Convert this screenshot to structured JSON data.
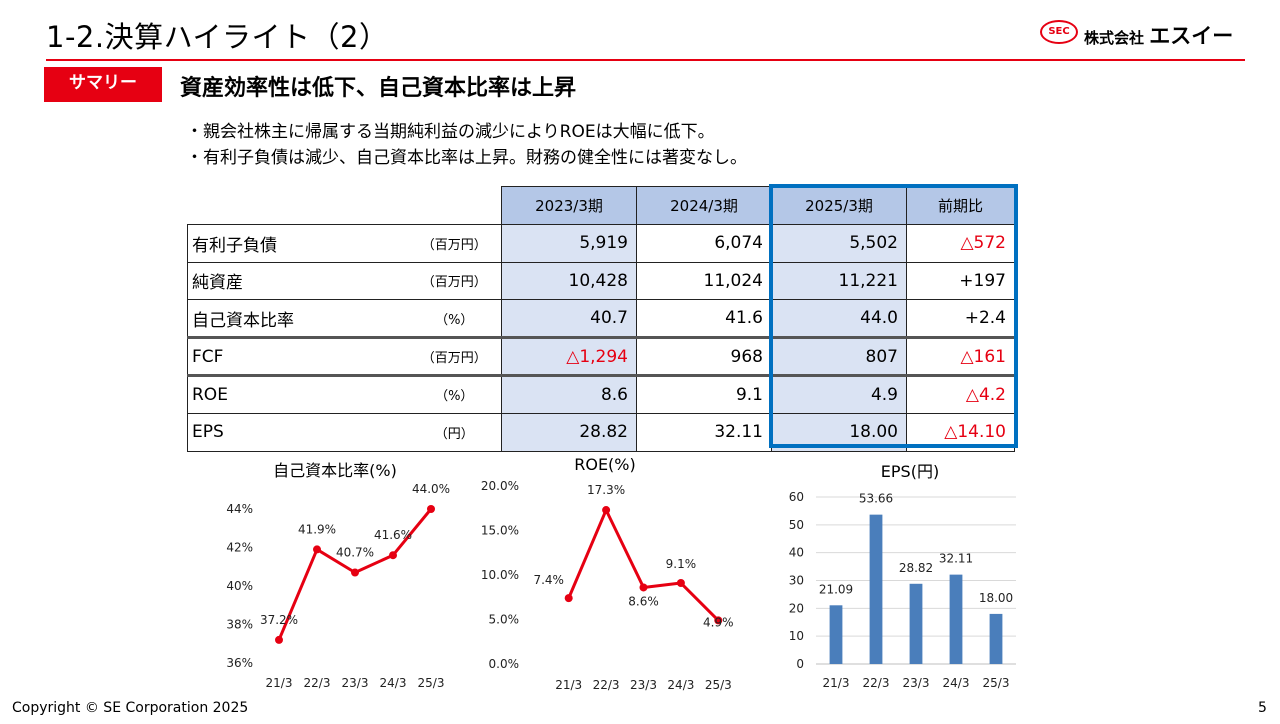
{
  "header": {
    "title": "1-2.決算ハイライト（2）",
    "logo_badge": "SEC",
    "logo_prefix": "株式会社",
    "logo_name": "エスイー"
  },
  "summary": {
    "tag": "サマリー",
    "headline": "資産効率性は低下、自己資本比率は上昇",
    "bullets": [
      "・親会社株主に帰属する当期純利益の減少によりROEは大幅に低下。",
      "・有利子負債は減少、自己資本比率は上昇。財務の健全性には著変なし。"
    ]
  },
  "table": {
    "headers": [
      "2023/3期",
      "2024/3期",
      "2025/3期",
      "前期比"
    ],
    "rows": [
      {
        "label": "有利子負債",
        "unit": "（百万円）",
        "values": [
          "5,919",
          "6,074",
          "5,502",
          "△572"
        ]
      },
      {
        "label": "純資産",
        "unit": "（百万円）",
        "values": [
          "10,428",
          "11,024",
          "11,221",
          "+197"
        ]
      },
      {
        "label": "自己資本比率",
        "unit": "（%）",
        "values": [
          "40.7",
          "41.6",
          "44.0",
          "+2.4"
        ]
      },
      {
        "label": "FCF",
        "unit": "（百万円）",
        "values": [
          "△1,294",
          "968",
          "807",
          "△161"
        ]
      },
      {
        "label": "ROE",
        "unit": "（%）",
        "values": [
          "8.6",
          "9.1",
          "4.9",
          "△4.2"
        ]
      },
      {
        "label": "EPS",
        "unit": "（円）",
        "values": [
          "28.82",
          "32.11",
          "18.00",
          "△14.10"
        ]
      }
    ],
    "highlight_color": "#0070c0",
    "negative_color": "#e60012"
  },
  "chart_data": [
    {
      "type": "line",
      "title": "自己資本比率(%)",
      "categories": [
        "21/3",
        "22/3",
        "23/3",
        "24/3",
        "25/3"
      ],
      "values": [
        37.2,
        41.9,
        40.7,
        41.6,
        44.0
      ],
      "data_labels": [
        "37.2%",
        "41.9%",
        "40.7%",
        "41.6%",
        "44.0%"
      ],
      "yticks": [
        "36%",
        "38%",
        "40%",
        "42%",
        "44%"
      ],
      "ylim": [
        36,
        44
      ],
      "color": "#e60012",
      "grid": false
    },
    {
      "type": "line",
      "title": "ROE(%)",
      "categories": [
        "21/3",
        "22/3",
        "23/3",
        "24/3",
        "25/3"
      ],
      "values": [
        7.4,
        17.3,
        8.6,
        9.1,
        4.9
      ],
      "data_labels": [
        "7.4%",
        "17.3%",
        "8.6%",
        "9.1%",
        "4.9%"
      ],
      "yticks": [
        "0.0%",
        "5.0%",
        "10.0%",
        "15.0%",
        "20.0%"
      ],
      "ylim": [
        0,
        20
      ],
      "color": "#e60012",
      "grid": false
    },
    {
      "type": "bar",
      "title": "EPS(円)",
      "categories": [
        "21/3",
        "22/3",
        "23/3",
        "24/3",
        "25/3"
      ],
      "values": [
        21.09,
        53.66,
        28.82,
        32.11,
        18.0
      ],
      "data_labels": [
        "21.09",
        "53.66",
        "28.82",
        "32.11",
        "18.00"
      ],
      "yticks": [
        "0",
        "10",
        "20",
        "30",
        "40",
        "50",
        "60"
      ],
      "ylim": [
        0,
        60
      ],
      "color": "#4a7ebb",
      "grid": true
    }
  ],
  "footer": {
    "copyright": "Copyright © SE Corporation 2025",
    "page": "5"
  }
}
